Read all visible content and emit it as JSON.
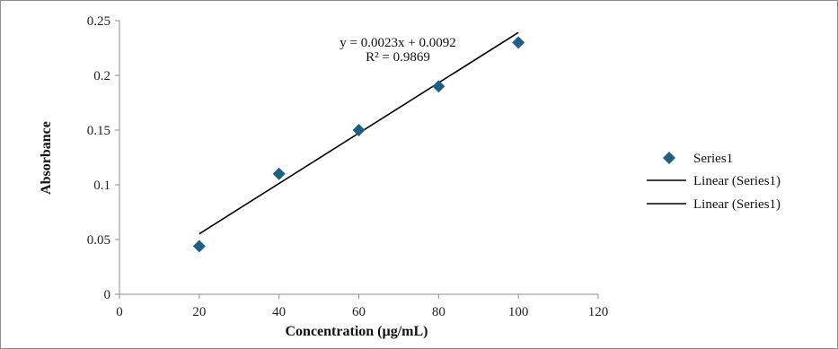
{
  "chart_data": {
    "type": "scatter",
    "title": "",
    "xlabel": "Concentration (µg/mL)",
    "ylabel": "Absorbance",
    "xlim": [
      0,
      120
    ],
    "ylim": [
      0,
      0.25
    ],
    "x_ticks": [
      "0",
      "20",
      "40",
      "60",
      "80",
      "100",
      "120"
    ],
    "y_ticks": [
      "0",
      "0.05",
      "0.1",
      "0.15",
      "0.2",
      "0.25"
    ],
    "grid": false,
    "legend_position": "right",
    "series": [
      {
        "name": "Series1",
        "marker": "diamond",
        "color": "#1f5f85",
        "x": [
          20,
          40,
          60,
          80,
          100
        ],
        "y": [
          0.044,
          0.11,
          0.15,
          0.19,
          0.23
        ]
      }
    ],
    "trendline": {
      "legend_labels": [
        "Linear (Series1)",
        "Linear (Series1)"
      ],
      "x_range": [
        20,
        100
      ],
      "slope": 0.0023,
      "intercept": 0.0092,
      "color": "#000000",
      "equation": "y = 0.0023x + 0.0092",
      "r_squared": "R² = 0.9869"
    }
  }
}
